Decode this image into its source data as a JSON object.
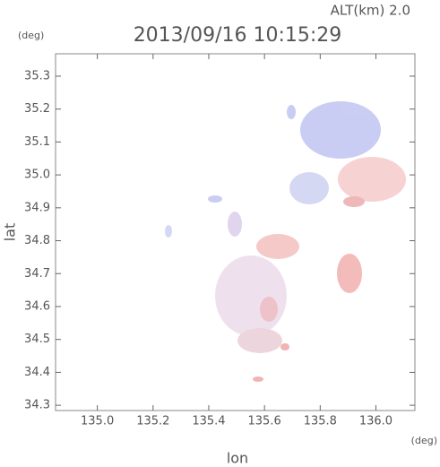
{
  "chart_data": {
    "type": "heatmap",
    "title": "2013/09/16 10:15:29",
    "annotation": "ALT(km)  2.0",
    "y_unit": "(deg)",
    "x_unit": "(deg)",
    "xlabel": "lon",
    "ylabel": "lat",
    "xlim": [
      134.85,
      136.14
    ],
    "xticks": [
      {
        "value": 135,
        "label": "135.0"
      },
      135.2,
      135.4,
      135.6,
      135.8,
      {
        "value": 136,
        "label": "136.0"
      }
    ],
    "ylim": [
      34.284,
      35.368
    ],
    "yticks": [
      34.3,
      34.4,
      34.5,
      34.6,
      34.7,
      34.8,
      34.9,
      {
        "value": 35,
        "label": "35.0"
      },
      35.1,
      35.2,
      35.3
    ]
  }
}
